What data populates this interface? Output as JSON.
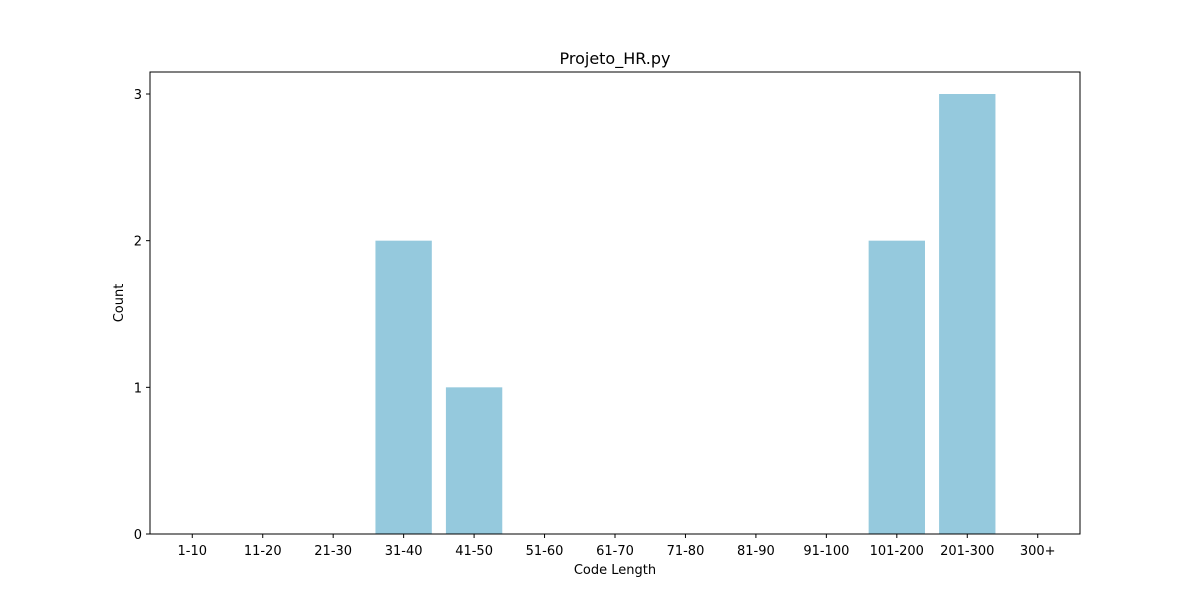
{
  "chart_data": {
    "type": "bar",
    "title": "Projeto_HR.py",
    "xlabel": "Code Length",
    "ylabel": "Count",
    "categories": [
      "1-10",
      "11-20",
      "21-30",
      "31-40",
      "41-50",
      "51-60",
      "61-70",
      "71-80",
      "81-90",
      "91-100",
      "101-200",
      "201-300",
      "300+"
    ],
    "values": [
      0,
      0,
      0,
      2,
      1,
      0,
      0,
      0,
      0,
      0,
      2,
      3,
      0
    ],
    "yticks": [
      "0",
      "1",
      "2",
      "3"
    ],
    "ylim": [
      0,
      3.15
    ],
    "grid": false,
    "bar_color": "#95c9dd"
  }
}
